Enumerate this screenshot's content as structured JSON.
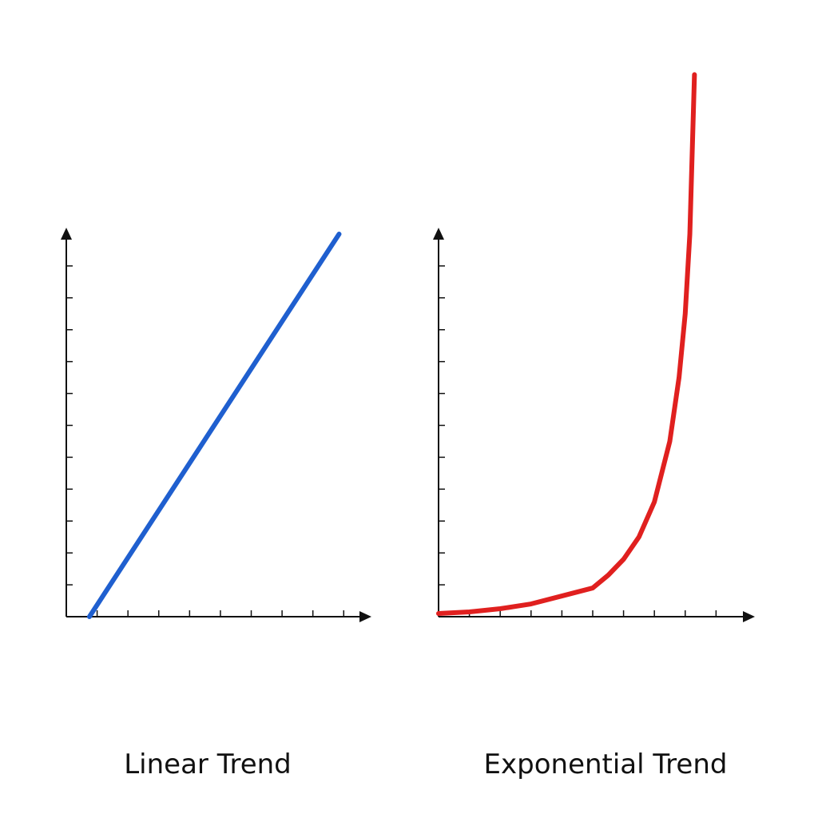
{
  "chart_data": [
    {
      "type": "line",
      "title": "Linear Trend",
      "x": [
        0.75,
        8.85
      ],
      "series": [
        {
          "color": "#1f5fcf",
          "values": [
            0,
            12
          ]
        }
      ],
      "xlim": [
        0,
        9.9
      ],
      "ylim": [
        0,
        12.2
      ],
      "xticks": [
        1,
        2,
        3,
        4,
        5,
        6,
        7,
        8,
        9
      ],
      "yticks": [
        1,
        2,
        3,
        4,
        5,
        6,
        7,
        8,
        9,
        10,
        11
      ]
    },
    {
      "type": "line",
      "title": "Exponential Trend",
      "x": [
        0,
        1,
        2,
        3,
        4,
        5,
        5.5,
        6,
        6.5,
        7,
        7.5,
        7.8,
        8,
        8.15,
        8.3
      ],
      "series": [
        {
          "color": "#e0201f",
          "values": [
            0.1,
            0.15,
            0.25,
            0.4,
            0.65,
            0.9,
            1.3,
            1.8,
            2.5,
            3.6,
            5.5,
            7.5,
            9.5,
            12,
            17
          ]
        }
      ],
      "xlim": [
        0,
        10.26
      ],
      "ylim": [
        0,
        12.2
      ],
      "xticks": [
        1,
        2,
        3,
        4,
        5,
        6,
        7,
        8,
        9
      ],
      "yticks": [
        1,
        2,
        3,
        4,
        5,
        6,
        7,
        8,
        9,
        10,
        11
      ]
    }
  ]
}
